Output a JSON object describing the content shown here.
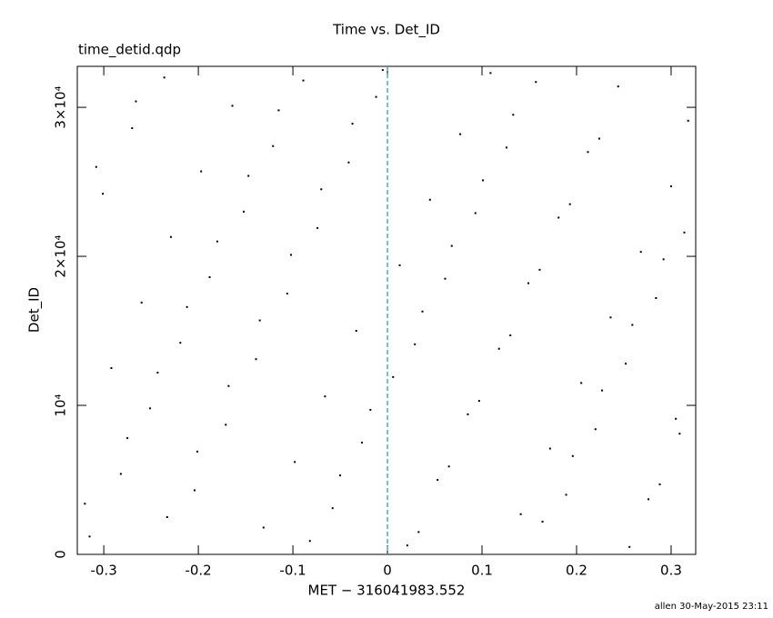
{
  "chart_data": {
    "type": "scatter",
    "title": "Time vs. Det_ID",
    "subtitle": "time_detid.qdp",
    "x_label": "MET − 316041983.552",
    "y_label": "Det_ID",
    "footer": "allen 30-May-2015 23:11",
    "xlim": [
      -0.328,
      0.326
    ],
    "ylim": [
      0,
      32750
    ],
    "xticks": [
      -0.3,
      -0.2,
      -0.1,
      0,
      0.1,
      0.2,
      0.3
    ],
    "yticks": [
      0,
      {
        "value": 10000,
        "label": "10⁴"
      },
      {
        "value": 20000,
        "label": "2×10⁴"
      },
      {
        "value": 30000,
        "label": "3×10⁴"
      }
    ],
    "vline": {
      "x": 0,
      "color": "#1a9fb0"
    },
    "series": [
      {
        "color": "#000000",
        "x": [
          -0.315,
          -0.282,
          -0.251,
          -0.219,
          -0.188,
          -0.152,
          -0.121,
          -0.089,
          -0.058,
          -0.027,
          0.006,
          0.037,
          0.068,
          0.101,
          0.133,
          0.164,
          0.196,
          0.227,
          0.259,
          0.292,
          -0.301,
          -0.27,
          -0.236,
          -0.204,
          -0.171,
          -0.139,
          -0.106,
          -0.074,
          -0.041,
          -0.012,
          0.021,
          0.053,
          0.085,
          0.118,
          0.149,
          0.181,
          0.212,
          0.244,
          0.276,
          0.309,
          -0.292,
          -0.26,
          -0.229,
          -0.197,
          -0.164,
          -0.131,
          -0.098,
          -0.066,
          -0.033,
          0.013,
          0.045,
          0.077,
          0.109,
          0.141,
          0.172,
          0.205,
          0.236,
          0.268,
          0.3,
          0.318,
          -0.32,
          -0.275,
          -0.243,
          -0.212,
          -0.18,
          -0.147,
          -0.115,
          -0.082,
          -0.05,
          -0.018,
          0.029,
          0.061,
          0.093,
          0.126,
          0.157,
          0.189,
          0.22,
          0.252,
          0.284,
          0.314,
          -0.308,
          -0.266,
          -0.233,
          -0.201,
          -0.168,
          -0.135,
          -0.102,
          -0.07,
          -0.037,
          -0.005,
          0.033,
          0.065,
          0.097,
          0.13,
          0.161,
          0.193,
          0.224,
          0.256,
          0.288,
          0.305
        ],
        "values": [
          1200,
          5400,
          9800,
          14200,
          18600,
          23000,
          27400,
          31800,
          3100,
          7500,
          11900,
          16300,
          20700,
          25100,
          29500,
          2200,
          6600,
          11000,
          15400,
          19800,
          24200,
          28600,
          32000,
          4300,
          8700,
          13100,
          17500,
          21900,
          26300,
          30700,
          600,
          5000,
          9400,
          13800,
          18200,
          22600,
          27000,
          31400,
          3700,
          8100,
          12500,
          16900,
          21300,
          25700,
          30100,
          1800,
          6200,
          10600,
          15000,
          19400,
          23800,
          28200,
          32300,
          2700,
          7100,
          11500,
          15900,
          20300,
          24700,
          29100,
          3400,
          7800,
          12200,
          16600,
          21000,
          25400,
          29800,
          900,
          5300,
          9700,
          14100,
          18500,
          22900,
          27300,
          31700,
          4000,
          8400,
          12800,
          17200,
          21600,
          26000,
          30400,
          2500,
          6900,
          11300,
          15700,
          20100,
          24500,
          28900,
          32500,
          1500,
          5900,
          10300,
          14700,
          19100,
          23500,
          27900,
          500,
          4700,
          9100
        ]
      }
    ]
  }
}
